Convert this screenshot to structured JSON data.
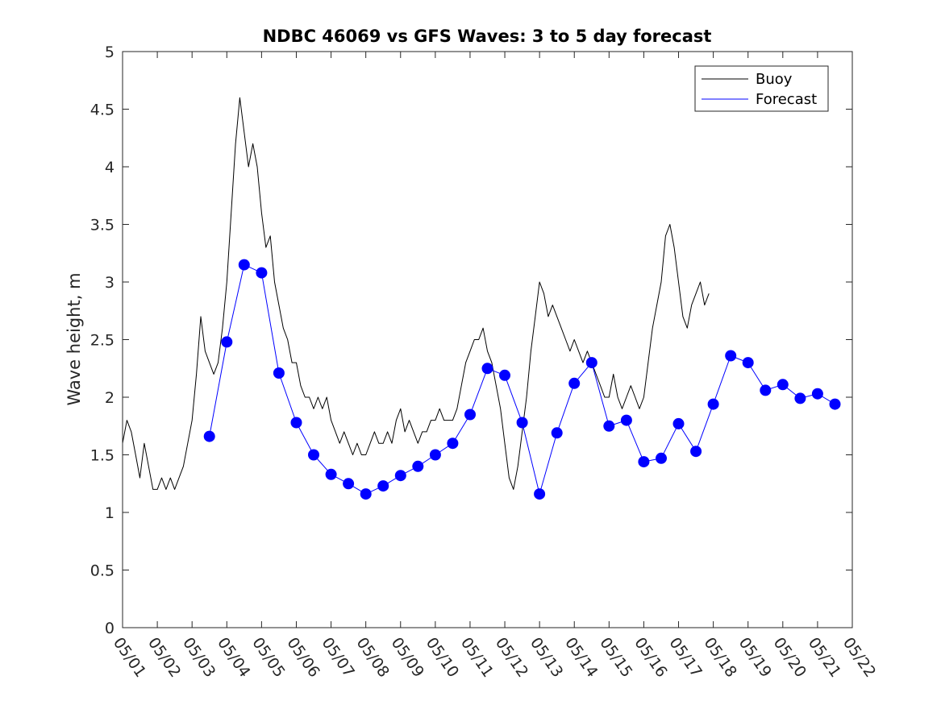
{
  "chart_data": {
    "type": "line",
    "title": "NDBC 46069 vs GFS Waves: 3 to 5 day forecast",
    "xlabel": "",
    "ylabel": "Wave height, m",
    "ylim": [
      0,
      5
    ],
    "xlim": [
      "05/01",
      "05/22"
    ],
    "x_tick_labels": [
      "05/01",
      "05/02",
      "05/03",
      "05/04",
      "05/05",
      "05/06",
      "05/07",
      "05/08",
      "05/09",
      "05/10",
      "05/11",
      "05/12",
      "05/13",
      "05/14",
      "05/15",
      "05/16",
      "05/17",
      "05/18",
      "05/19",
      "05/20",
      "05/21",
      "05/22"
    ],
    "y_tick_labels": [
      "0",
      "0.5",
      "1",
      "1.5",
      "2",
      "2.5",
      "3",
      "3.5",
      "4",
      "4.5",
      "5"
    ],
    "legend": {
      "position": "top-right",
      "entries": [
        "Buoy",
        "Forecast"
      ]
    },
    "colors": {
      "buoy": "#000000",
      "forecast": "#0000ff"
    },
    "series": [
      {
        "name": "Buoy",
        "color": "#000000",
        "points": [
          [
            "05/01 00:00",
            1.6
          ],
          [
            "05/01 03:00",
            1.8
          ],
          [
            "05/01 06:00",
            1.7
          ],
          [
            "05/01 09:00",
            1.5
          ],
          [
            "05/01 12:00",
            1.3
          ],
          [
            "05/01 15:00",
            1.6
          ],
          [
            "05/01 18:00",
            1.4
          ],
          [
            "05/01 21:00",
            1.2
          ],
          [
            "05/02 00:00",
            1.2
          ],
          [
            "05/02 03:00",
            1.3
          ],
          [
            "05/02 06:00",
            1.2
          ],
          [
            "05/02 09:00",
            1.3
          ],
          [
            "05/02 12:00",
            1.2
          ],
          [
            "05/02 15:00",
            1.3
          ],
          [
            "05/02 18:00",
            1.4
          ],
          [
            "05/02 21:00",
            1.6
          ],
          [
            "05/03 00:00",
            1.8
          ],
          [
            "05/03 03:00",
            2.2
          ],
          [
            "05/03 06:00",
            2.7
          ],
          [
            "05/03 09:00",
            2.4
          ],
          [
            "05/03 12:00",
            2.3
          ],
          [
            "05/03 15:00",
            2.2
          ],
          [
            "05/03 18:00",
            2.3
          ],
          [
            "05/03 21:00",
            2.6
          ],
          [
            "05/04 00:00",
            3.0
          ],
          [
            "05/04 03:00",
            3.6
          ],
          [
            "05/04 06:00",
            4.2
          ],
          [
            "05/04 09:00",
            4.6
          ],
          [
            "05/04 12:00",
            4.3
          ],
          [
            "05/04 15:00",
            4.0
          ],
          [
            "05/04 18:00",
            4.2
          ],
          [
            "05/04 21:00",
            4.0
          ],
          [
            "05/05 00:00",
            3.6
          ],
          [
            "05/05 03:00",
            3.3
          ],
          [
            "05/05 06:00",
            3.4
          ],
          [
            "05/05 09:00",
            3.0
          ],
          [
            "05/05 12:00",
            2.8
          ],
          [
            "05/05 15:00",
            2.6
          ],
          [
            "05/05 18:00",
            2.5
          ],
          [
            "05/05 21:00",
            2.3
          ],
          [
            "05/06 00:00",
            2.3
          ],
          [
            "05/06 03:00",
            2.1
          ],
          [
            "05/06 06:00",
            2.0
          ],
          [
            "05/06 09:00",
            2.0
          ],
          [
            "05/06 12:00",
            1.9
          ],
          [
            "05/06 15:00",
            2.0
          ],
          [
            "05/06 18:00",
            1.9
          ],
          [
            "05/06 21:00",
            2.0
          ],
          [
            "05/07 00:00",
            1.8
          ],
          [
            "05/07 03:00",
            1.7
          ],
          [
            "05/07 06:00",
            1.6
          ],
          [
            "05/07 09:00",
            1.7
          ],
          [
            "05/07 12:00",
            1.6
          ],
          [
            "05/07 15:00",
            1.5
          ],
          [
            "05/07 18:00",
            1.6
          ],
          [
            "05/07 21:00",
            1.5
          ],
          [
            "05/08 00:00",
            1.5
          ],
          [
            "05/08 03:00",
            1.6
          ],
          [
            "05/08 06:00",
            1.7
          ],
          [
            "05/08 09:00",
            1.6
          ],
          [
            "05/08 12:00",
            1.6
          ],
          [
            "05/08 15:00",
            1.7
          ],
          [
            "05/08 18:00",
            1.6
          ],
          [
            "05/08 21:00",
            1.8
          ],
          [
            "05/09 00:00",
            1.9
          ],
          [
            "05/09 03:00",
            1.7
          ],
          [
            "05/09 06:00",
            1.8
          ],
          [
            "05/09 09:00",
            1.7
          ],
          [
            "05/09 12:00",
            1.6
          ],
          [
            "05/09 15:00",
            1.7
          ],
          [
            "05/09 18:00",
            1.7
          ],
          [
            "05/09 21:00",
            1.8
          ],
          [
            "05/10 00:00",
            1.8
          ],
          [
            "05/10 03:00",
            1.9
          ],
          [
            "05/10 06:00",
            1.8
          ],
          [
            "05/10 09:00",
            1.8
          ],
          [
            "05/10 12:00",
            1.8
          ],
          [
            "05/10 15:00",
            1.9
          ],
          [
            "05/10 18:00",
            2.1
          ],
          [
            "05/10 21:00",
            2.3
          ],
          [
            "05/11 00:00",
            2.4
          ],
          [
            "05/11 03:00",
            2.5
          ],
          [
            "05/11 06:00",
            2.5
          ],
          [
            "05/11 09:00",
            2.6
          ],
          [
            "05/11 12:00",
            2.4
          ],
          [
            "05/11 15:00",
            2.3
          ],
          [
            "05/11 18:00",
            2.1
          ],
          [
            "05/11 21:00",
            1.9
          ],
          [
            "05/12 00:00",
            1.6
          ],
          [
            "05/12 03:00",
            1.3
          ],
          [
            "05/12 06:00",
            1.2
          ],
          [
            "05/12 09:00",
            1.4
          ],
          [
            "05/12 12:00",
            1.7
          ],
          [
            "05/12 15:00",
            2.0
          ],
          [
            "05/12 18:00",
            2.4
          ],
          [
            "05/12 21:00",
            2.7
          ],
          [
            "05/13 00:00",
            3.0
          ],
          [
            "05/13 03:00",
            2.9
          ],
          [
            "05/13 06:00",
            2.7
          ],
          [
            "05/13 09:00",
            2.8
          ],
          [
            "05/13 12:00",
            2.7
          ],
          [
            "05/13 15:00",
            2.6
          ],
          [
            "05/13 18:00",
            2.5
          ],
          [
            "05/13 21:00",
            2.4
          ],
          [
            "05/14 00:00",
            2.5
          ],
          [
            "05/14 03:00",
            2.4
          ],
          [
            "05/14 06:00",
            2.3
          ],
          [
            "05/14 09:00",
            2.4
          ],
          [
            "05/14 12:00",
            2.3
          ],
          [
            "05/14 15:00",
            2.2
          ],
          [
            "05/14 18:00",
            2.1
          ],
          [
            "05/14 21:00",
            2.0
          ],
          [
            "05/15 00:00",
            2.0
          ],
          [
            "05/15 03:00",
            2.2
          ],
          [
            "05/15 06:00",
            2.0
          ],
          [
            "05/15 09:00",
            1.9
          ],
          [
            "05/15 12:00",
            2.0
          ],
          [
            "05/15 15:00",
            2.1
          ],
          [
            "05/15 18:00",
            2.0
          ],
          [
            "05/15 21:00",
            1.9
          ],
          [
            "05/16 00:00",
            2.0
          ],
          [
            "05/16 03:00",
            2.3
          ],
          [
            "05/16 06:00",
            2.6
          ],
          [
            "05/16 09:00",
            2.8
          ],
          [
            "05/16 12:00",
            3.0
          ],
          [
            "05/16 15:00",
            3.4
          ],
          [
            "05/16 18:00",
            3.5
          ],
          [
            "05/16 21:00",
            3.3
          ],
          [
            "05/17 00:00",
            3.0
          ],
          [
            "05/17 03:00",
            2.7
          ],
          [
            "05/17 06:00",
            2.6
          ],
          [
            "05/17 09:00",
            2.8
          ],
          [
            "05/17 12:00",
            2.9
          ],
          [
            "05/17 15:00",
            3.0
          ],
          [
            "05/17 18:00",
            2.8
          ],
          [
            "05/17 21:00",
            2.9
          ]
        ]
      },
      {
        "name": "Forecast",
        "color": "#0000ff",
        "points": [
          [
            "05/03 12:00",
            1.66
          ],
          [
            "05/04 00:00",
            2.48
          ],
          [
            "05/04 12:00",
            3.15
          ],
          [
            "05/05 00:00",
            3.08
          ],
          [
            "05/05 12:00",
            2.21
          ],
          [
            "05/06 00:00",
            1.78
          ],
          [
            "05/06 12:00",
            1.5
          ],
          [
            "05/07 00:00",
            1.33
          ],
          [
            "05/07 12:00",
            1.25
          ],
          [
            "05/08 00:00",
            1.16
          ],
          [
            "05/08 12:00",
            1.23
          ],
          [
            "05/09 00:00",
            1.32
          ],
          [
            "05/09 12:00",
            1.4
          ],
          [
            "05/10 00:00",
            1.5
          ],
          [
            "05/10 12:00",
            1.6
          ],
          [
            "05/11 00:00",
            1.85
          ],
          [
            "05/11 12:00",
            2.25
          ],
          [
            "05/12 00:00",
            2.19
          ],
          [
            "05/12 12:00",
            1.78
          ],
          [
            "05/13 00:00",
            1.16
          ],
          [
            "05/13 12:00",
            1.69
          ],
          [
            "05/14 00:00",
            2.12
          ],
          [
            "05/14 12:00",
            2.3
          ],
          [
            "05/15 00:00",
            1.75
          ],
          [
            "05/15 12:00",
            1.8
          ],
          [
            "05/16 00:00",
            1.44
          ],
          [
            "05/16 12:00",
            1.47
          ],
          [
            "05/17 00:00",
            1.77
          ],
          [
            "05/17 12:00",
            1.53
          ],
          [
            "05/18 00:00",
            1.94
          ],
          [
            "05/18 12:00",
            2.36
          ],
          [
            "05/19 00:00",
            2.3
          ],
          [
            "05/19 12:00",
            2.06
          ],
          [
            "05/20 00:00",
            2.11
          ],
          [
            "05/20 12:00",
            1.99
          ],
          [
            "05/21 00:00",
            2.03
          ],
          [
            "05/21 12:00",
            1.94
          ]
        ]
      }
    ]
  }
}
